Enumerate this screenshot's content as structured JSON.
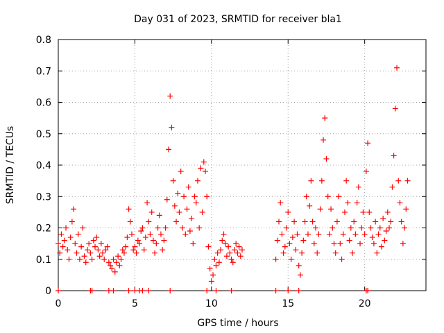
{
  "chart_data": {
    "type": "scatter",
    "title": "Day 031 of 2023, SRMTID for receiver bla1",
    "xlabel": "GPS time / hours",
    "ylabel": "SRMTID / TECUs",
    "xlim": [
      0,
      24
    ],
    "ylim": [
      0,
      0.8
    ],
    "xticks": [
      0,
      5,
      10,
      15,
      20
    ],
    "xtick_labels": [
      "0",
      "5",
      "10",
      "15",
      "20"
    ],
    "yticks": [
      0,
      0.1,
      0.2,
      0.3,
      0.4,
      0.5,
      0.6,
      0.7,
      0.8
    ],
    "ytick_labels": [
      "0",
      "0.1",
      "0.2",
      "0.3",
      "0.4",
      "0.5",
      "0.6",
      "0.7",
      "0.8"
    ],
    "grid": true,
    "marker": "+",
    "series_color": "#ff0000",
    "series": [
      {
        "name": "SRMTID",
        "x": [
          0.0,
          0.1,
          0.2,
          0.3,
          0.4,
          0.5,
          0.6,
          0.7,
          0.8,
          0.9,
          1.0,
          1.1,
          1.2,
          1.3,
          1.4,
          1.5,
          1.6,
          1.7,
          1.8,
          1.9,
          2.0,
          2.1,
          2.2,
          2.3,
          2.4,
          2.5,
          2.6,
          2.7,
          2.8,
          2.9,
          3.0,
          3.1,
          3.2,
          3.3,
          3.4,
          3.5,
          3.6,
          3.7,
          3.8,
          3.9,
          4.0,
          4.1,
          4.2,
          4.3,
          4.4,
          4.5,
          4.6,
          4.7,
          4.8,
          4.9,
          5.0,
          5.1,
          5.2,
          5.3,
          5.4,
          5.5,
          5.6,
          5.7,
          5.8,
          5.9,
          6.0,
          6.1,
          6.2,
          6.3,
          6.4,
          6.5,
          6.6,
          6.7,
          6.8,
          6.9,
          7.0,
          7.1,
          7.2,
          7.3,
          7.4,
          7.5,
          7.6,
          7.7,
          7.8,
          7.9,
          8.0,
          8.1,
          8.2,
          8.3,
          8.4,
          8.5,
          8.6,
          8.7,
          8.8,
          8.9,
          9.0,
          9.1,
          9.2,
          9.3,
          9.4,
          9.5,
          9.6,
          9.7,
          9.8,
          9.9,
          10.0,
          10.1,
          10.2,
          10.3,
          10.4,
          10.5,
          10.6,
          10.7,
          10.8,
          10.9,
          11.0,
          11.1,
          11.2,
          11.3,
          11.4,
          11.5,
          11.6,
          11.7,
          11.8,
          11.9,
          12.0,
          14.2,
          14.3,
          14.4,
          14.5,
          14.6,
          14.7,
          14.8,
          14.9,
          15.0,
          15.1,
          15.2,
          15.3,
          15.4,
          15.5,
          15.6,
          15.7,
          15.8,
          15.9,
          16.0,
          16.1,
          16.2,
          16.3,
          16.4,
          16.5,
          16.6,
          16.7,
          16.8,
          16.9,
          17.0,
          17.1,
          17.2,
          17.3,
          17.4,
          17.5,
          17.6,
          17.7,
          17.8,
          17.9,
          18.0,
          18.1,
          18.2,
          18.3,
          18.4,
          18.5,
          18.6,
          18.7,
          18.8,
          18.9,
          19.0,
          19.1,
          19.2,
          19.3,
          19.4,
          19.5,
          19.6,
          19.7,
          19.8,
          19.9,
          20.0,
          20.1,
          20.2,
          20.3,
          20.4,
          20.5,
          20.6,
          20.7,
          20.8,
          20.9,
          21.0,
          21.1,
          21.2,
          21.3,
          21.4,
          21.5,
          21.6,
          21.7,
          21.8,
          21.9,
          22.0,
          22.1,
          22.2,
          22.3,
          22.4,
          22.5,
          22.6,
          22.7,
          22.8,
          2.1,
          2.2,
          3.3,
          3.6,
          4.6,
          5.0,
          5.3,
          5.5,
          5.9,
          7.3,
          9.7,
          10.3,
          11.3,
          14.2,
          15.0,
          15.7,
          20.1,
          20.2,
          0.0
        ],
        "y": [
          0.15,
          0.12,
          0.18,
          0.14,
          0.16,
          0.2,
          0.13,
          0.1,
          0.17,
          0.22,
          0.26,
          0.15,
          0.12,
          0.18,
          0.1,
          0.14,
          0.2,
          0.11,
          0.09,
          0.13,
          0.15,
          0.12,
          0.1,
          0.16,
          0.14,
          0.17,
          0.13,
          0.11,
          0.15,
          0.12,
          0.1,
          0.13,
          0.14,
          0.09,
          0.08,
          0.07,
          0.1,
          0.06,
          0.09,
          0.11,
          0.08,
          0.1,
          0.13,
          0.12,
          0.14,
          0.17,
          0.26,
          0.22,
          0.18,
          0.13,
          0.14,
          0.12,
          0.16,
          0.15,
          0.19,
          0.2,
          0.13,
          0.17,
          0.28,
          0.22,
          0.18,
          0.25,
          0.16,
          0.12,
          0.15,
          0.2,
          0.24,
          0.18,
          0.13,
          0.16,
          0.2,
          0.29,
          0.45,
          0.62,
          0.52,
          0.35,
          0.27,
          0.22,
          0.31,
          0.25,
          0.38,
          0.2,
          0.3,
          0.18,
          0.26,
          0.33,
          0.19,
          0.23,
          0.15,
          0.3,
          0.28,
          0.35,
          0.2,
          0.39,
          0.25,
          0.41,
          0.38,
          0.3,
          0.14,
          0.07,
          0.03,
          0.05,
          0.1,
          0.08,
          0.12,
          0.09,
          0.13,
          0.16,
          0.18,
          0.15,
          0.11,
          0.14,
          0.12,
          0.1,
          0.09,
          0.13,
          0.15,
          0.12,
          0.14,
          0.11,
          0.13,
          0.1,
          0.16,
          0.22,
          0.28,
          0.18,
          0.12,
          0.14,
          0.2,
          0.25,
          0.15,
          0.1,
          0.17,
          0.22,
          0.13,
          0.18,
          0.08,
          0.05,
          0.12,
          0.16,
          0.22,
          0.3,
          0.18,
          0.27,
          0.35,
          0.22,
          0.15,
          0.2,
          0.12,
          0.18,
          0.26,
          0.35,
          0.48,
          0.55,
          0.42,
          0.3,
          0.18,
          0.26,
          0.2,
          0.15,
          0.12,
          0.22,
          0.3,
          0.15,
          0.1,
          0.18,
          0.25,
          0.35,
          0.28,
          0.16,
          0.2,
          0.12,
          0.22,
          0.18,
          0.28,
          0.33,
          0.15,
          0.2,
          0.25,
          0.18,
          0.38,
          0.47,
          0.25,
          0.2,
          0.17,
          0.15,
          0.22,
          0.12,
          0.18,
          0.2,
          0.14,
          0.23,
          0.16,
          0.19,
          0.25,
          0.2,
          0.22,
          0.33,
          0.43,
          0.58,
          0.71,
          0.35,
          0.28,
          0.22,
          0.15,
          0.2,
          0.26,
          0.35,
          0.0,
          0.0,
          0.0,
          0.0,
          0.0,
          0.0,
          0.0,
          0.0,
          0.0,
          0.0,
          0.0,
          0.0,
          0.0,
          0.0,
          0.0,
          0.0,
          0.0,
          0.0,
          0.0
        ]
      }
    ]
  }
}
